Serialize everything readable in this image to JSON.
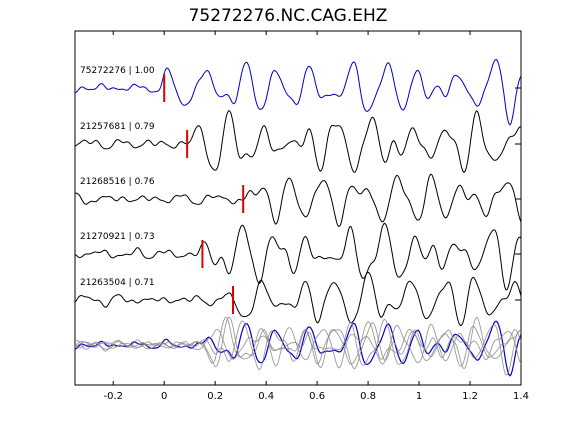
{
  "chart_data": {
    "type": "line",
    "title": "75272276.NC.CAG.EHZ",
    "xlabel": "",
    "ylabel": "",
    "xlim": [
      -0.35,
      1.4
    ],
    "xticks": [
      -0.2,
      0,
      0.2,
      0.4,
      0.6,
      0.8,
      1,
      1.2,
      1.4
    ],
    "xtick_labels": [
      "-0.2",
      "0",
      "0.2",
      "0.4",
      "0.6",
      "0.8",
      "1",
      "1.2",
      "1.4"
    ],
    "grid": false,
    "colors": {
      "template": "#0000cc",
      "neighbor": "#000000",
      "pick": "#dd0000",
      "overlay_neighbor": "#888888"
    },
    "traces": [
      {
        "label": "75272276 | 1.00",
        "pick_time": 0.0,
        "color": "#0000cc"
      },
      {
        "label": "21257681 | 0.79",
        "pick_time": 0.09,
        "color": "#000000"
      },
      {
        "label": "21268516 | 0.76",
        "pick_time": 0.31,
        "color": "#000000"
      },
      {
        "label": "21270921 | 0.73",
        "pick_time": 0.15,
        "color": "#000000"
      },
      {
        "label": "21263504 | 0.71",
        "pick_time": 0.27,
        "color": "#000000"
      }
    ],
    "overlay": {
      "description_shown": false
    }
  }
}
